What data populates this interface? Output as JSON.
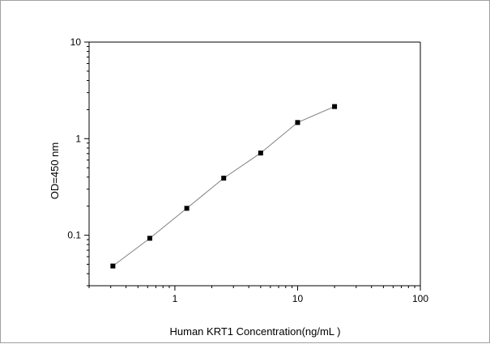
{
  "chart_data": {
    "type": "line",
    "title": "",
    "xlabel": "Human KRT1 Concentration(ng/mL )",
    "ylabel": "OD=450 nm",
    "xscale": "log",
    "yscale": "log",
    "xlim": [
      0.2,
      100
    ],
    "ylim": [
      0.03,
      10
    ],
    "x_ticks": [
      {
        "value": 1,
        "label": "1"
      },
      {
        "value": 10,
        "label": "10"
      },
      {
        "value": 100,
        "label": "100"
      }
    ],
    "y_ticks": [
      {
        "value": 0.1,
        "label": "0.1"
      },
      {
        "value": 1,
        "label": "1"
      },
      {
        "value": 10,
        "label": "10"
      }
    ],
    "grid": false,
    "legend": "none",
    "series": [
      {
        "x": [
          0.3125,
          0.625,
          1.25,
          2.5,
          5,
          10,
          20
        ],
        "y": [
          0.048,
          0.093,
          0.19,
          0.39,
          0.71,
          1.47,
          2.15
        ],
        "marker": "square",
        "color": "#000000",
        "line_color": "#808080"
      }
    ]
  }
}
